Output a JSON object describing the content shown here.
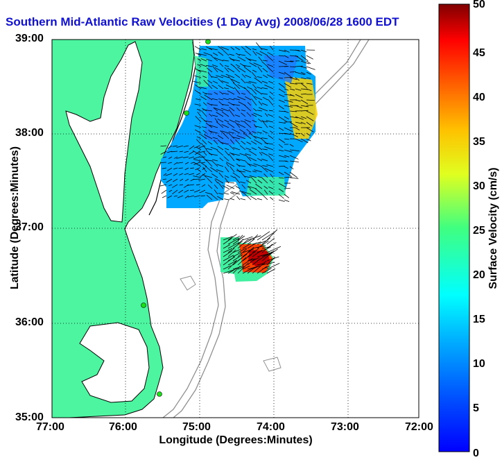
{
  "title": "Southern Mid-Atlantic Raw Velocities (1 Day Avg) 2008/06/28 1600 EDT",
  "xlabel": "Longitude (Degrees:Minutes)",
  "ylabel": "Latitude (Degrees:Minutes)",
  "colorbar": {
    "label": "Surface Velocity (cm/s)",
    "ticks": [
      "0",
      "5",
      "10",
      "15",
      "20",
      "25",
      "30",
      "35",
      "40",
      "45",
      "50"
    ],
    "range": [
      0,
      50
    ]
  },
  "x_ticks": [
    "77:00",
    "76:00",
    "75:00",
    "74:00",
    "73:00",
    "72:00"
  ],
  "y_ticks": [
    "39:00",
    "38:00",
    "37:00",
    "36:00",
    "35:00"
  ],
  "colors": {
    "land": "#4df5a0",
    "coastline": "#000000",
    "bathymetry": "#909090",
    "stations": "#19e019",
    "title": "#1010d0"
  },
  "map": {
    "lon_range": [
      -77,
      -72
    ],
    "lat_range": [
      35,
      39
    ],
    "grid": true
  }
}
